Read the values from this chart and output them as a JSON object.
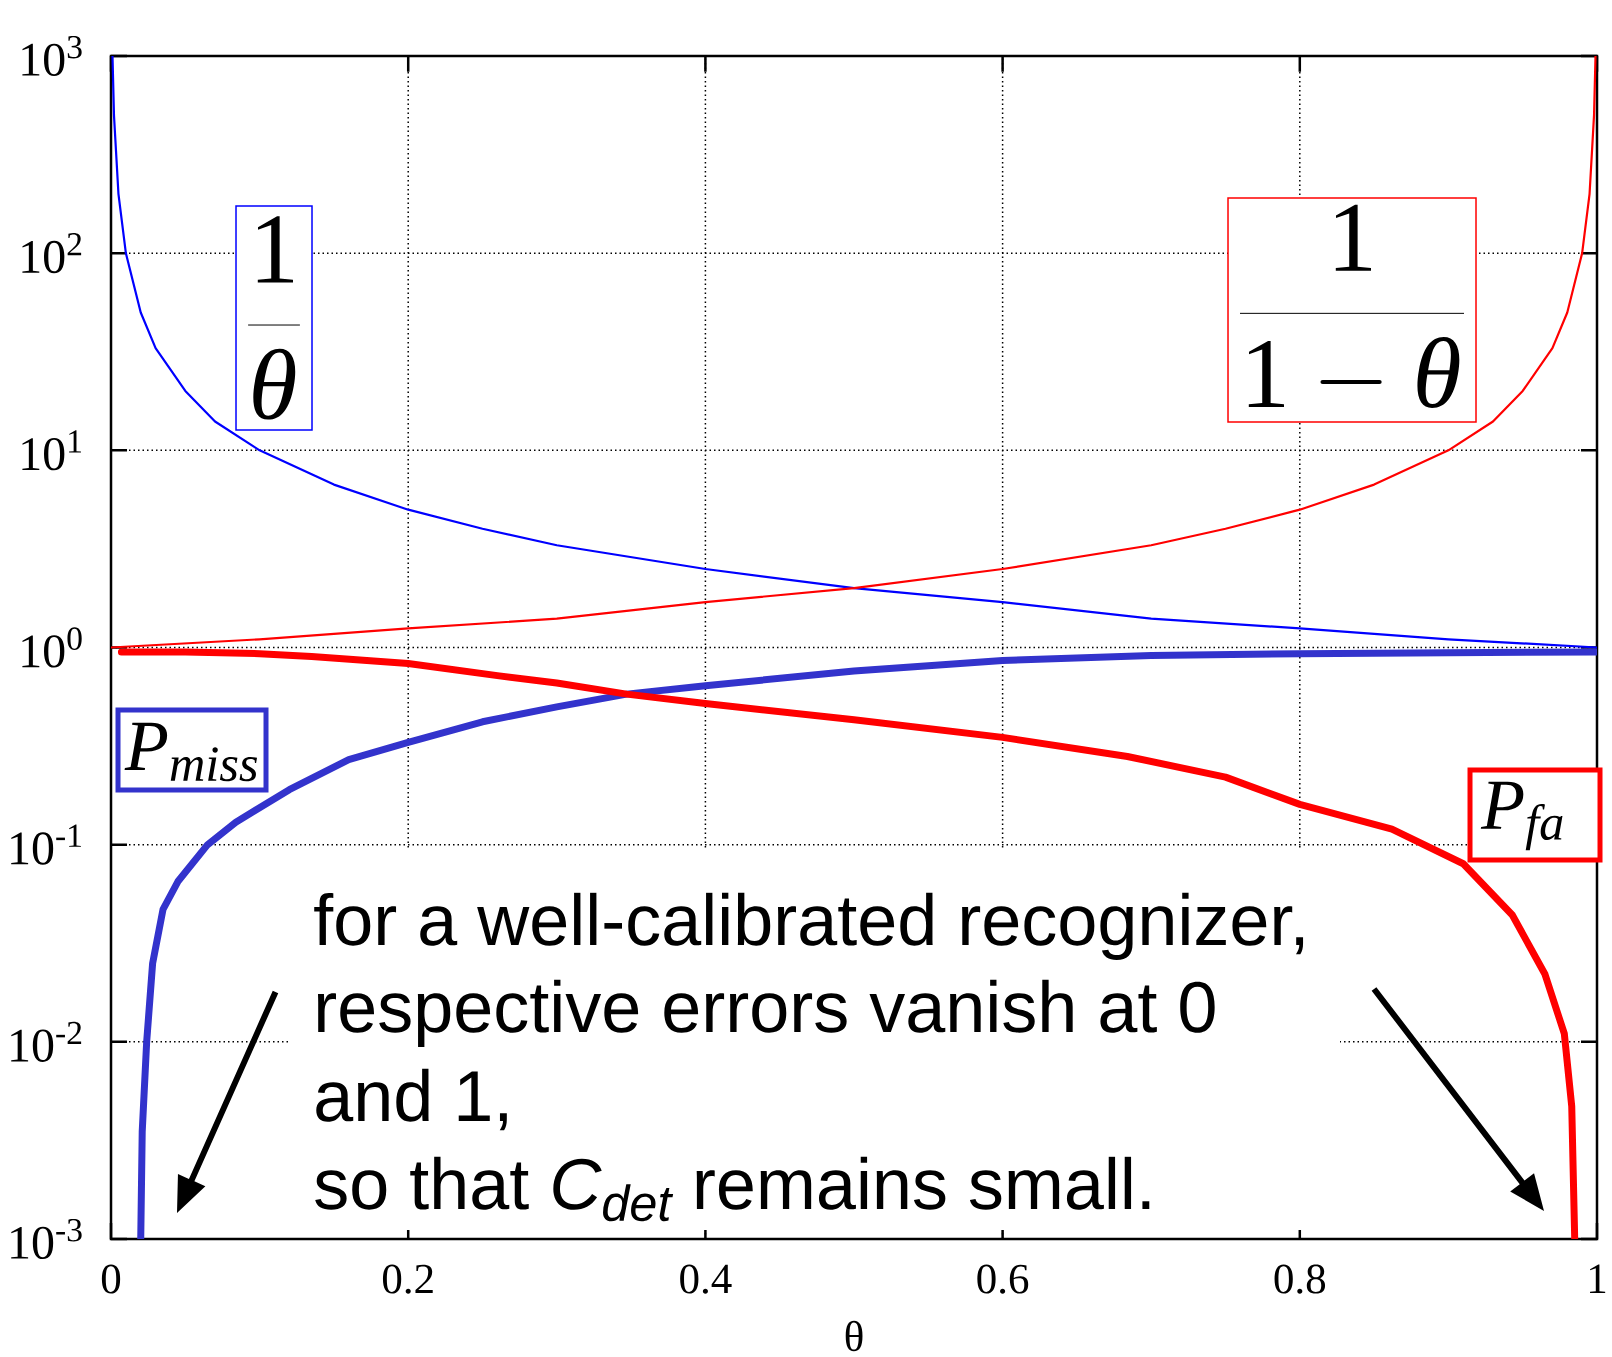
{
  "chart_data": {
    "type": "line",
    "xlabel": "θ",
    "log": "y",
    "grid": true,
    "xlim": [
      0,
      1
    ],
    "ylim": [
      0.001,
      1000
    ],
    "xticks": [
      0,
      0.2,
      0.4,
      0.6,
      0.8,
      1
    ],
    "yticks": [
      {
        "value": 0.001,
        "label": "10$^{-3}$"
      },
      {
        "value": 0.01,
        "label": "10$^{-2}$"
      },
      {
        "value": 0.1,
        "label": "10$^{-1}$"
      },
      {
        "value": 1,
        "label": "10$^{0}$"
      },
      {
        "value": 10,
        "label": "10$^{1}$"
      },
      {
        "value": 100,
        "label": "10$^{2}$"
      },
      {
        "value": 1000,
        "label": "10$^{3}$"
      }
    ],
    "annotations": [
      "for a well-calibrated recognizer,",
      "respective errors vanish at 0",
      "and 1,",
      "so that *C$_{det}$* remains small."
    ],
    "series": [
      {
        "name": "\\frac{1}{\\theta}",
        "color": "#0000ff",
        "x": [
          0.001,
          0.002,
          0.005,
          0.01,
          0.02,
          0.03,
          0.05,
          0.07,
          0.1,
          0.15,
          0.2,
          0.25,
          0.3,
          0.4,
          0.5,
          0.6,
          0.7,
          0.8,
          0.9,
          1.0
        ],
        "values": [
          1000,
          500,
          200,
          100,
          50,
          33,
          20,
          14,
          10,
          6.7,
          5,
          4,
          3.3,
          2.5,
          2,
          1.7,
          1.4,
          1.25,
          1.1,
          1.0
        ]
      },
      {
        "name": "\\frac{1}{1-\\theta}",
        "color": "#ff0000",
        "x": [
          0,
          0.1,
          0.2,
          0.3,
          0.4,
          0.5,
          0.6,
          0.7,
          0.75,
          0.8,
          0.85,
          0.9,
          0.93,
          0.95,
          0.97,
          0.98,
          0.99,
          0.995,
          0.998,
          0.999
        ],
        "values": [
          1,
          1.1,
          1.25,
          1.4,
          1.7,
          2,
          2.5,
          3.3,
          4,
          5,
          6.7,
          10,
          14,
          20,
          33,
          50,
          100,
          200,
          500,
          1000
        ]
      },
      {
        "name": "*P$_{miss}$*",
        "color": "#3333cc",
        "x": [
          0.02,
          0.021,
          0.024,
          0.028,
          0.035,
          0.045,
          0.065,
          0.084,
          0.12,
          0.16,
          0.2,
          0.25,
          0.3,
          0.347,
          0.4,
          0.5,
          0.6,
          0.7,
          0.8,
          0.9,
          1.0
        ],
        "values": [
          0.001,
          0.0035,
          0.01,
          0.025,
          0.047,
          0.065,
          0.1,
          0.13,
          0.19,
          0.27,
          0.33,
          0.42,
          0.5,
          0.58,
          0.64,
          0.76,
          0.86,
          0.91,
          0.93,
          0.94,
          0.95
        ]
      },
      {
        "name": "*P$_{fa}$*",
        "color": "#ff0000",
        "x": [
          0.007,
          0.05,
          0.1,
          0.135,
          0.2,
          0.26,
          0.3,
          0.347,
          0.4,
          0.5,
          0.6,
          0.684,
          0.75,
          0.8,
          0.862,
          0.91,
          0.943,
          0.965,
          0.978,
          0.983,
          0.985
        ],
        "values": [
          0.95,
          0.95,
          0.93,
          0.9,
          0.83,
          0.72,
          0.66,
          0.58,
          0.52,
          0.43,
          0.35,
          0.28,
          0.22,
          0.16,
          0.12,
          0.08,
          0.044,
          0.022,
          0.011,
          0.0047,
          0.001
        ]
      }
    ]
  }
}
